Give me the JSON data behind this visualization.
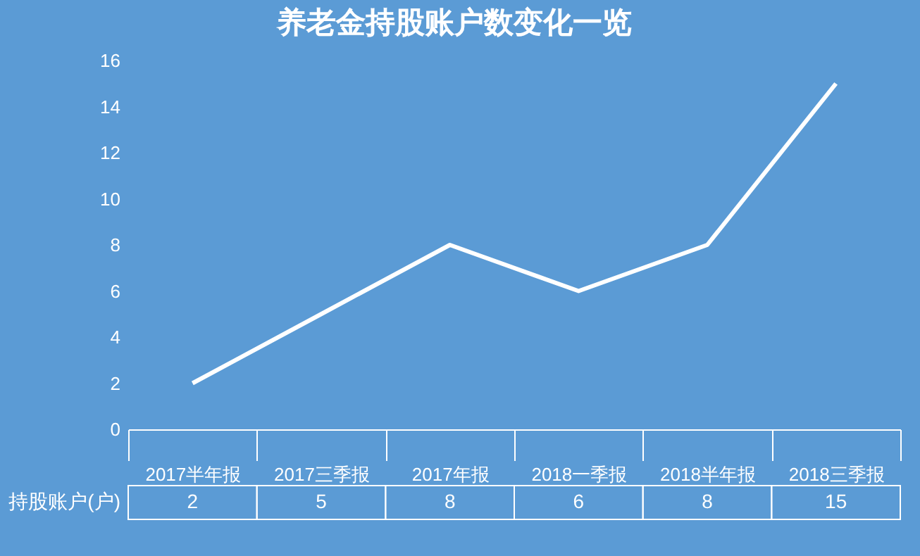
{
  "chart_data": {
    "type": "line",
    "title": "养老金持股账户数变化一览",
    "categories": [
      "2017半年报",
      "2017三季报",
      "2017年报",
      "2018一季报",
      "2018半年报",
      "2018三季报"
    ],
    "series": [
      {
        "name": "持股账户(户)",
        "color": "#ffffff",
        "values": [
          2,
          5,
          8,
          6,
          8,
          15
        ]
      }
    ],
    "ylim": [
      0,
      16
    ],
    "yticks": [
      0,
      2,
      4,
      6,
      8,
      10,
      12,
      14,
      16
    ],
    "grid": false,
    "legend": false,
    "marker": "none",
    "line_style": "solid",
    "data_labels": true
  }
}
